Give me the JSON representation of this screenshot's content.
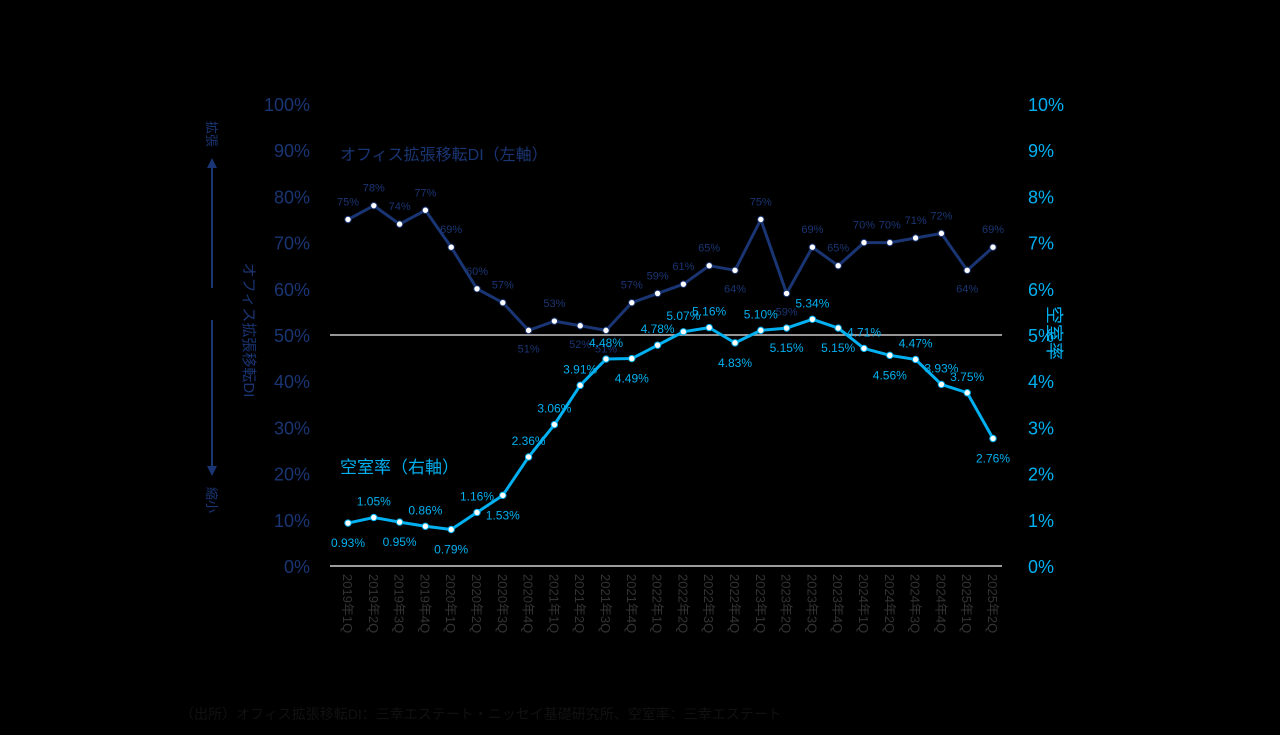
{
  "chart_data": {
    "type": "line",
    "categories": [
      "2019年1Q",
      "2019年2Q",
      "2019年3Q",
      "2019年4Q",
      "2020年1Q",
      "2020年2Q",
      "2020年3Q",
      "2020年4Q",
      "2021年1Q",
      "2021年2Q",
      "2021年3Q",
      "2021年4Q",
      "2022年1Q",
      "2022年2Q",
      "2022年3Q",
      "2022年4Q",
      "2023年1Q",
      "2023年2Q",
      "2023年3Q",
      "2023年4Q",
      "2024年1Q",
      "2024年2Q",
      "2024年3Q",
      "2024年4Q",
      "2025年1Q",
      "2025年2Q"
    ],
    "series": [
      {
        "name": "オフィス拡張移転DI（左軸）",
        "axis": "left",
        "values": [
          75,
          78,
          74,
          77,
          69,
          60,
          57,
          51,
          53,
          52,
          51,
          57,
          59,
          61,
          65,
          64,
          75,
          59,
          69,
          65,
          70,
          70,
          71,
          72,
          64,
          69
        ],
        "labels": [
          "75%",
          "78%",
          "74%",
          "77%",
          "69%",
          "60%",
          "57%",
          "51%",
          "53%",
          "52%",
          "51%",
          "57%",
          "59%",
          "61%",
          "65%",
          "64%",
          "75%",
          "59%",
          "69%",
          "65%",
          "70%",
          "70%",
          "71%",
          "72%",
          "64%",
          "69%"
        ]
      },
      {
        "name": "空室率（右軸）",
        "axis": "right",
        "values": [
          0.93,
          1.05,
          0.95,
          0.86,
          0.79,
          1.16,
          1.53,
          2.36,
          3.06,
          3.91,
          4.48,
          4.49,
          4.78,
          5.07,
          5.16,
          4.83,
          5.1,
          5.15,
          5.34,
          5.15,
          4.71,
          4.56,
          4.47,
          3.93,
          3.75,
          2.76
        ],
        "labels": [
          "0.93%",
          "1.05%",
          "0.95%",
          "0.86%",
          "0.79%",
          "1.16%",
          "1.53%",
          "2.36%",
          "3.06%",
          "3.91%",
          "4.48%",
          "4.49%",
          "4.78%",
          "5.07%",
          "5.16%",
          "4.83%",
          "5.10%",
          "5.15%",
          "5.34%",
          "5.15%",
          "4.71%",
          "4.56%",
          "4.47%",
          "3.93%",
          "3.75%",
          "2.76%"
        ]
      }
    ],
    "y_left": {
      "label": "オフィス拡張移転DI",
      "ylim": [
        0,
        100
      ],
      "ticks": [
        "0%",
        "10%",
        "20%",
        "30%",
        "40%",
        "50%",
        "60%",
        "70%",
        "80%",
        "90%",
        "100%"
      ]
    },
    "y_right": {
      "label": "空室率",
      "ylim": [
        0,
        10
      ],
      "ticks": [
        "0%",
        "1%",
        "2%",
        "3%",
        "4%",
        "5%",
        "6%",
        "7%",
        "8%",
        "9%",
        "10%"
      ]
    },
    "reference_line": {
      "axis": "left",
      "value": 50
    },
    "left_arrow_top_label": "拡張",
    "left_arrow_bottom_label": "縮小",
    "source": "（出所）オフィス拡張移転DI：三幸エステート・ニッセイ基礎研究所、空室率：三幸エステート",
    "colors": {
      "di": "#1a3573",
      "vacancy": "#00b0f0",
      "reference": "#c8c8c8",
      "background": "#000000"
    }
  }
}
